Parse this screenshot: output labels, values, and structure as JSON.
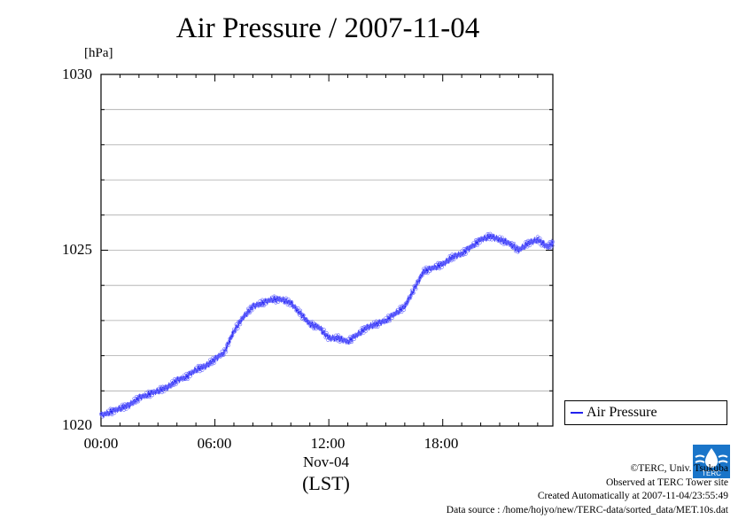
{
  "title": "Air Pressure / 2007-11-04",
  "unit": "[hPa]",
  "y_ticks": [
    "1030",
    "1025",
    "1020"
  ],
  "x_ticks": [
    "00:00",
    "06:00",
    "12:00",
    "18:00"
  ],
  "x_subtitle": "Nov-04",
  "x_label": "(LST)",
  "legend": {
    "label": "Air Pressure"
  },
  "credits": {
    "line1": "©TERC, Univ. Tsukuba",
    "line2": "Observed at TERC Tower site",
    "line3": "Created Automatically at 2007-11-04/23:55:49",
    "line4": "Data source : /home/hojyo/new/TERC-data/sorted_data/MET.10s.dat"
  },
  "logo_text": "TERC",
  "colors": {
    "series": "#2222ee",
    "points": "#6666ff",
    "grid": "#aaaaaa"
  },
  "chart_data": {
    "type": "line",
    "title": "Air Pressure / 2007-11-04",
    "ylabel": "[hPa]",
    "xlabel": "(LST)",
    "ylim": [
      1020,
      1030
    ],
    "xlim": [
      0,
      23.8
    ],
    "x_unit": "hour of day",
    "grid": true,
    "legend_position": "right",
    "series": [
      {
        "name": "Air Pressure",
        "x": [
          0.0,
          0.5,
          1.0,
          1.5,
          2.0,
          2.5,
          3.0,
          3.5,
          4.0,
          4.5,
          5.0,
          5.5,
          6.0,
          6.5,
          7.0,
          7.5,
          8.0,
          8.5,
          9.0,
          9.5,
          10.0,
          10.5,
          11.0,
          11.5,
          12.0,
          12.5,
          13.0,
          13.5,
          14.0,
          14.5,
          15.0,
          15.5,
          16.0,
          16.5,
          17.0,
          17.5,
          18.0,
          18.5,
          19.0,
          19.5,
          20.0,
          20.5,
          21.0,
          21.5,
          22.0,
          22.5,
          23.0,
          23.5,
          23.8
        ],
        "values": [
          1020.3,
          1020.4,
          1020.5,
          1020.6,
          1020.8,
          1020.9,
          1021.0,
          1021.1,
          1021.3,
          1021.4,
          1021.6,
          1021.7,
          1021.9,
          1022.1,
          1022.7,
          1023.1,
          1023.4,
          1023.5,
          1023.6,
          1023.6,
          1023.5,
          1023.2,
          1022.9,
          1022.8,
          1022.5,
          1022.5,
          1022.4,
          1022.6,
          1022.8,
          1022.9,
          1023.0,
          1023.2,
          1023.4,
          1023.9,
          1024.4,
          1024.5,
          1024.6,
          1024.8,
          1024.9,
          1025.1,
          1025.3,
          1025.4,
          1025.3,
          1025.2,
          1025.0,
          1025.2,
          1025.3,
          1025.1,
          1025.2
        ]
      }
    ]
  }
}
